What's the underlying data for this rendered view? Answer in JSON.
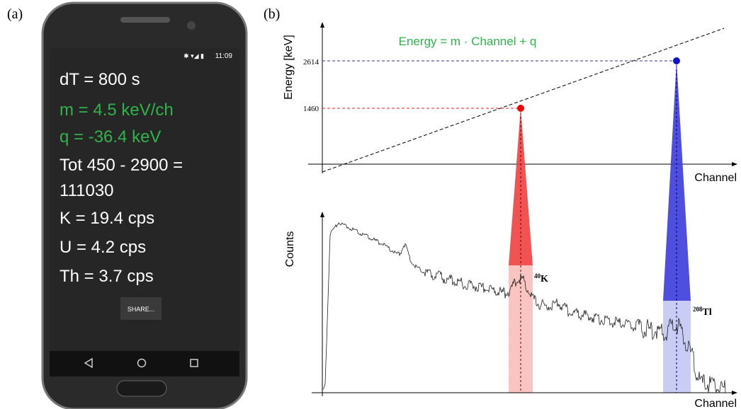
{
  "panel_labels": [
    "(a)",
    "(b)"
  ],
  "phone": {
    "status_time": "11:09",
    "lines": [
      "dT = 800 s",
      "m = 4.5 keV/ch",
      "q = -36.4 keV",
      "Tot 450 - 2900 =",
      "111030",
      "K = 19.4 cps",
      "U = 4.2 cps",
      "Th = 3.7 cps"
    ],
    "button": "SHARE..."
  },
  "diagram": {
    "equation": "Energy = m · Channel + q",
    "y_label_top": "Energy [keV]",
    "x_label_top": "Channel",
    "energy_ticks": [
      "2614",
      "1460"
    ],
    "y_label_bottom": "Counts",
    "x_label_bottom": "Channel",
    "peaks": [
      {
        "mass": "40",
        "element": "K"
      },
      {
        "mass": "208",
        "element": "Tl"
      }
    ]
  }
}
